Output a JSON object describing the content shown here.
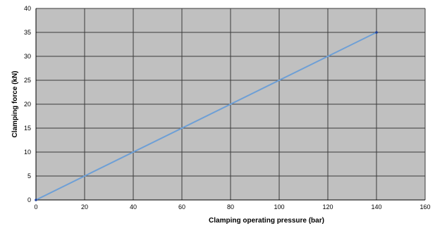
{
  "chart_data": {
    "type": "line",
    "title": "",
    "xlabel": "Clamping operating pressure (bar)",
    "ylabel": "Clamping force (kN)",
    "xlim": [
      0,
      160
    ],
    "ylim": [
      0,
      40
    ],
    "x_ticks": [
      0,
      20,
      40,
      60,
      80,
      100,
      120,
      140,
      160
    ],
    "y_ticks": [
      0,
      5,
      10,
      15,
      20,
      25,
      30,
      35,
      40
    ],
    "grid": true,
    "legend": "none",
    "series": [
      {
        "x": [
          0,
          140
        ],
        "y": [
          0,
          35
        ],
        "color": "#6d9fd6"
      }
    ],
    "colors": {
      "plot_background": "#c0c0c0",
      "grid": "#3a3a3a",
      "line": "#6d9fd6",
      "end_marker": "#1f3f99"
    }
  }
}
